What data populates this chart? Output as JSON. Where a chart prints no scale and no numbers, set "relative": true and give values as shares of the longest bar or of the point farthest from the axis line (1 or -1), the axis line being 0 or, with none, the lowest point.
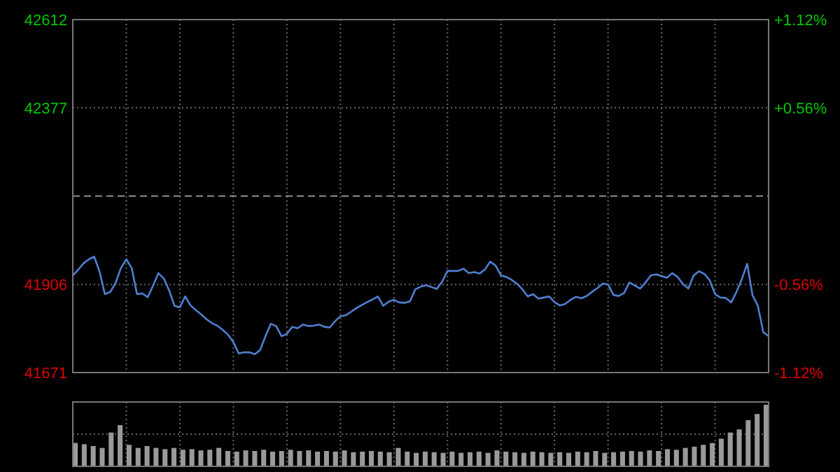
{
  "chart_data": [
    {
      "type": "line",
      "categories": [
        null,
        null,
        null,
        null,
        null,
        null,
        null,
        null,
        null,
        null,
        null,
        null,
        null,
        null,
        null,
        null,
        null,
        null,
        null,
        null,
        null,
        null,
        null,
        null,
        null,
        null,
        null,
        null,
        null,
        null,
        null,
        null,
        null,
        null,
        null,
        null,
        null,
        null,
        null,
        null,
        null,
        null,
        null,
        null,
        null,
        null,
        null,
        null,
        null,
        null,
        null,
        null,
        null,
        null,
        null,
        null,
        null,
        null,
        null,
        null,
        null,
        null,
        null,
        null,
        null,
        null,
        null,
        null,
        null,
        null,
        null,
        null,
        null,
        null,
        null,
        null,
        null,
        null,
        null,
        null,
        null,
        null,
        null,
        null,
        null,
        null,
        null,
        null,
        null,
        null,
        null,
        null,
        null,
        null,
        null,
        null,
        null,
        null,
        null,
        null,
        null,
        null,
        null,
        null,
        null,
        null,
        null,
        null,
        null,
        null,
        null,
        null,
        null,
        null,
        null,
        null,
        null,
        null,
        null,
        null,
        null,
        null,
        null,
        null,
        null,
        null,
        null,
        null,
        null,
        null,
        null
      ],
      "series": [
        {
          "color": "#4f7fd0",
          "values": [
            41930,
            41945,
            41962,
            41973,
            41980,
            41940,
            41880,
            41886,
            41910,
            41950,
            41973,
            41950,
            41880,
            41882,
            41872,
            41903,
            41936,
            41922,
            41890,
            41849,
            41845,
            41874,
            41850,
            41837,
            41826,
            41813,
            41803,
            41796,
            41785,
            41772,
            41752,
            41722,
            41725,
            41725,
            41720,
            41731,
            41768,
            41801,
            41795,
            41768,
            41774,
            41793,
            41789,
            41799,
            41795,
            41796,
            41799,
            41793,
            41791,
            41808,
            41821,
            41824,
            41833,
            41843,
            41851,
            41859,
            41866,
            41874,
            41849,
            41860,
            41865,
            41858,
            41857,
            41861,
            41893,
            41900,
            41904,
            41899,
            41894,
            41913,
            41942,
            41942,
            41942,
            41948,
            41936,
            41939,
            41935,
            41946,
            41967,
            41956,
            41930,
            41926,
            41918,
            41908,
            41893,
            41874,
            41880,
            41868,
            41871,
            41874,
            41859,
            41850,
            41854,
            41865,
            41873,
            41869,
            41875,
            41886,
            41896,
            41908,
            41906,
            41878,
            41875,
            41883,
            41911,
            41903,
            41895,
            41911,
            41930,
            41933,
            41928,
            41924,
            41936,
            41926,
            41907,
            41895,
            41930,
            41941,
            41934,
            41917,
            41880,
            41871,
            41870,
            41858,
            41886,
            41920,
            41961,
            41877,
            41849,
            41779,
            41768
          ]
        }
      ],
      "ylim": [
        41671,
        42612
      ],
      "yticks": [
        41671,
        41906,
        42377,
        42612
      ],
      "y2lim": [
        -1.12,
        1.12
      ],
      "y2ticks": [
        {
          "value": -1.12,
          "label": "-1.12%"
        },
        {
          "value": -0.56,
          "label": "-0.56%"
        },
        {
          "value": 0.56,
          "label": "+0.56%"
        },
        {
          "value": 1.12,
          "label": "+1.12%"
        }
      ],
      "ref_lines": [
        {
          "axis": "y",
          "value": 42141.5,
          "color": "#888888",
          "line_style": "dashed"
        }
      ],
      "grid": true
    },
    {
      "type": "bar",
      "relative": true,
      "color": "#9a9a9a",
      "grid": true,
      "categories": [
        null,
        null,
        null,
        null,
        null,
        null,
        null,
        null,
        null,
        null,
        null,
        null,
        null,
        null,
        null,
        null,
        null,
        null,
        null,
        null,
        null,
        null,
        null,
        null,
        null,
        null,
        null,
        null,
        null,
        null,
        null,
        null,
        null,
        null,
        null,
        null,
        null,
        null,
        null,
        null,
        null,
        null,
        null,
        null,
        null,
        null,
        null,
        null,
        null,
        null,
        null,
        null,
        null,
        null,
        null,
        null,
        null,
        null,
        null,
        null,
        null,
        null,
        null,
        null,
        null,
        null,
        null,
        null,
        null,
        null,
        null,
        null,
        null,
        null,
        null,
        null,
        null,
        null
      ],
      "values": [
        0.38,
        0.36,
        0.33,
        0.3,
        0.55,
        0.67,
        0.35,
        0.3,
        0.33,
        0.3,
        0.28,
        0.3,
        0.27,
        0.28,
        0.26,
        0.27,
        0.3,
        0.25,
        0.24,
        0.26,
        0.25,
        0.27,
        0.24,
        0.25,
        0.27,
        0.25,
        0.26,
        0.24,
        0.25,
        0.24,
        0.26,
        0.23,
        0.24,
        0.25,
        0.24,
        0.23,
        0.3,
        0.24,
        0.22,
        0.24,
        0.23,
        0.22,
        0.24,
        0.22,
        0.23,
        0.24,
        0.22,
        0.26,
        0.24,
        0.23,
        0.22,
        0.24,
        0.23,
        0.22,
        0.23,
        0.22,
        0.24,
        0.23,
        0.25,
        0.22,
        0.23,
        0.24,
        0.25,
        0.24,
        0.26,
        0.25,
        0.28,
        0.27,
        0.3,
        0.32,
        0.35,
        0.38,
        0.45,
        0.55,
        0.6,
        0.75,
        0.85,
        1
      ]
    }
  ]
}
